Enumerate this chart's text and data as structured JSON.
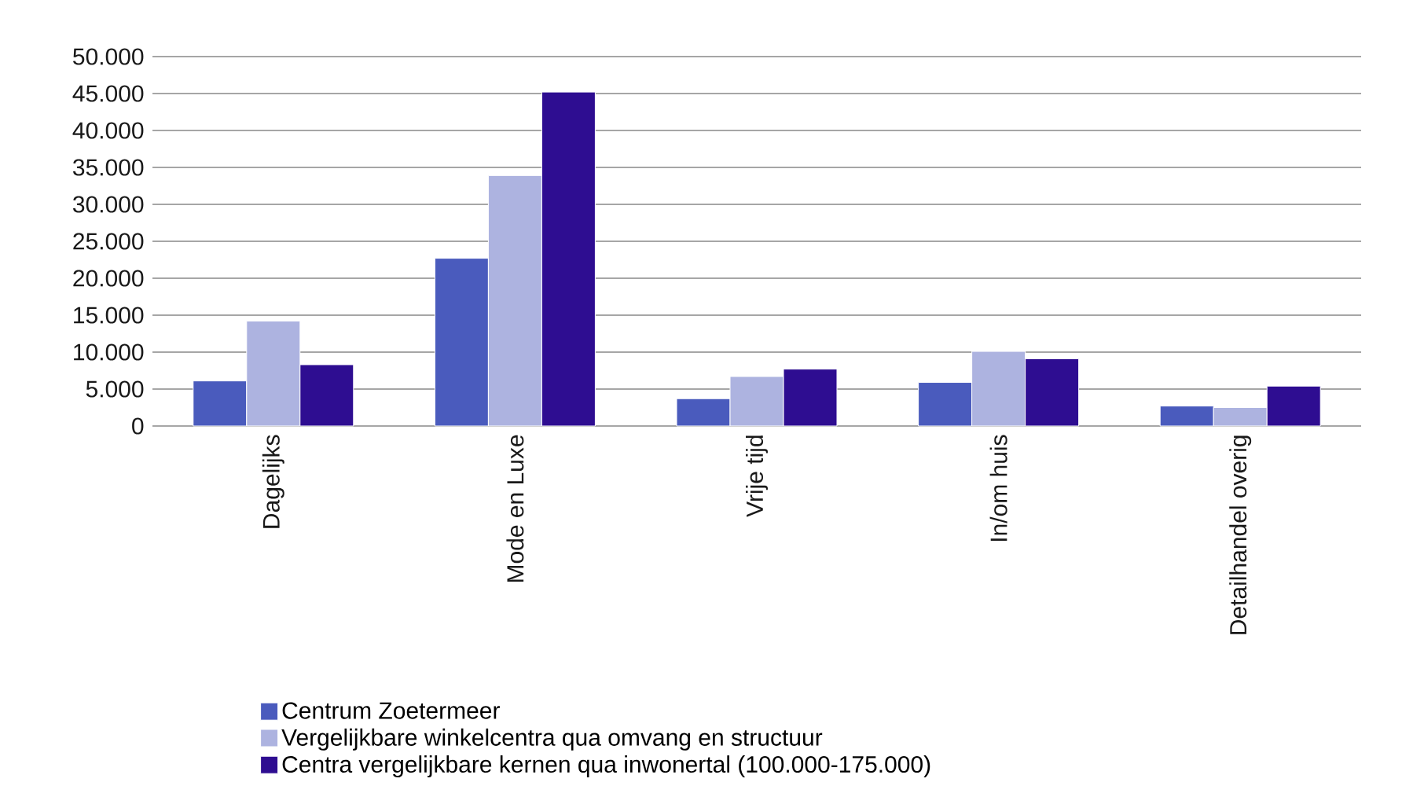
{
  "chart_data": {
    "type": "bar",
    "categories": [
      "Dagelijks",
      "Mode en Luxe",
      "Vrije tijd",
      "In/om huis",
      "Detailhandel overig"
    ],
    "series": [
      {
        "name": "Centrum Zoetermeer",
        "color": "#4a5bbd",
        "values": [
          6100,
          22700,
          3700,
          5900,
          2700
        ]
      },
      {
        "name": "Vergelijkbare winkelcentra qua omvang en structuur",
        "color": "#adb3e0",
        "values": [
          14200,
          33900,
          6700,
          10100,
          2500
        ]
      },
      {
        "name": "Centra vergelijkbare kernen qua inwonertal (100.000-175.000)",
        "color": "#2e0d91",
        "values": [
          8300,
          45200,
          7700,
          9100,
          5400
        ]
      }
    ],
    "ylim": [
      0,
      50000
    ],
    "yticks": [
      0,
      {
        "value": 5000,
        "label": "5.000"
      },
      {
        "value": 10000,
        "label": "10.000"
      },
      {
        "value": 15000,
        "label": "15.000"
      },
      {
        "value": 20000,
        "label": "20.000"
      },
      {
        "value": 25000,
        "label": "25.000"
      },
      {
        "value": 30000,
        "label": "30.000"
      },
      {
        "value": 35000,
        "label": "35.000"
      },
      {
        "value": 40000,
        "label": "40.000"
      },
      {
        "value": 45000,
        "label": "45.000"
      },
      {
        "value": 50000,
        "label": "50.000"
      }
    ],
    "grid": "y",
    "legend": "bottom left"
  }
}
